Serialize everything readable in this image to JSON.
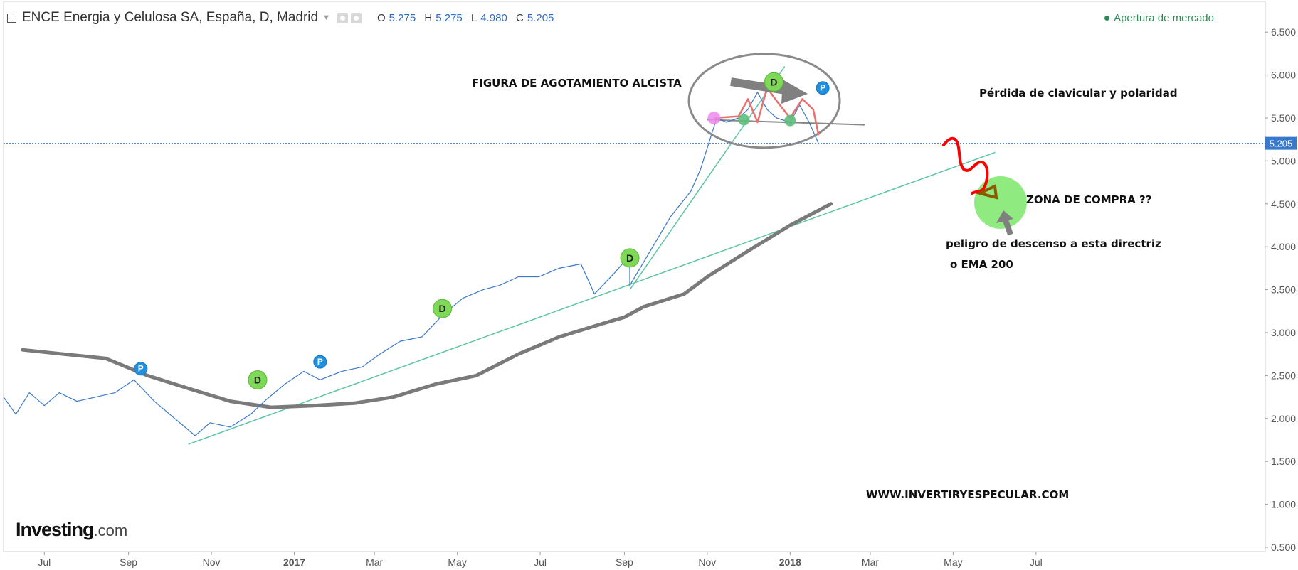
{
  "header": {
    "symbol_title": "ENCE Energia y Celulosa SA, España, D, Madrid",
    "ohlc": [
      {
        "key": "O",
        "value": "5.275"
      },
      {
        "key": "H",
        "value": "5.275"
      },
      {
        "key": "L",
        "value": "4.980"
      },
      {
        "key": "C",
        "value": "5.205"
      }
    ],
    "market_status": "Apertura de mercado"
  },
  "logo": {
    "brand": "Investing",
    "domain": ".com"
  },
  "annotations": {
    "pattern_label": "FIGURA DE AGOTAMIENTO ALCISTA",
    "loss_label": "Pérdida de clavicular y polaridad",
    "buy_zone_label": "ZONA DE COMPRA ??",
    "danger_label": "peligro de descenso a esta directriz",
    "ema_label": "o EMA 200",
    "website": "WWW.INVERTIRYESPECULAR.COM"
  },
  "colors": {
    "price_line": "#3a78c9",
    "ema_line": "#7a7a7a",
    "trendline": "#5cc4a6",
    "neckline": "#888888",
    "hs_pattern": "#e8706e",
    "projection": "#ff0000",
    "buy_zone": "#7be86a",
    "dividend_marker": "#7ed957",
    "p_marker": "#1e90e0",
    "last_price_badge": "#3a78c9"
  },
  "chart_data": {
    "type": "line",
    "x_tick_labels": [
      "Jul",
      "Sep",
      "Nov",
      "2017",
      "Mar",
      "May",
      "Jul",
      "Sep",
      "Nov",
      "2018",
      "Mar",
      "May",
      "Jul"
    ],
    "y_tick_labels": [
      "0.500",
      "1.000",
      "1.500",
      "2.000",
      "2.500",
      "3.000",
      "3.500",
      "4.000",
      "4.500",
      "5.000",
      "5.500",
      "6.000",
      "6.500"
    ],
    "ylim": [
      0.4,
      6.85
    ],
    "grid": false,
    "last_price": "5.205",
    "series": [
      {
        "name": "ENCE Energia y Celulosa SA",
        "type": "price",
        "points": [
          [
            "2016-06-01",
            2.25
          ],
          [
            "2016-06-10",
            2.05
          ],
          [
            "2016-06-20",
            2.3
          ],
          [
            "2016-07-01",
            2.15
          ],
          [
            "2016-07-12",
            2.3
          ],
          [
            "2016-07-25",
            2.2
          ],
          [
            "2016-08-08",
            2.25
          ],
          [
            "2016-08-22",
            2.3
          ],
          [
            "2016-09-05",
            2.45
          ],
          [
            "2016-09-20",
            2.2
          ],
          [
            "2016-10-05",
            2.0
          ],
          [
            "2016-10-20",
            1.8
          ],
          [
            "2016-10-31",
            1.95
          ],
          [
            "2016-11-15",
            1.9
          ],
          [
            "2016-11-30",
            2.05
          ],
          [
            "2016-12-10",
            2.2
          ],
          [
            "2016-12-25",
            2.4
          ],
          [
            "2017-01-08",
            2.55
          ],
          [
            "2017-01-20",
            2.45
          ],
          [
            "2017-02-05",
            2.55
          ],
          [
            "2017-02-20",
            2.6
          ],
          [
            "2017-03-05",
            2.75
          ],
          [
            "2017-03-20",
            2.9
          ],
          [
            "2017-04-05",
            2.95
          ],
          [
            "2017-04-20",
            3.2
          ],
          [
            "2017-05-05",
            3.4
          ],
          [
            "2017-05-20",
            3.5
          ],
          [
            "2017-06-01",
            3.55
          ],
          [
            "2017-06-15",
            3.65
          ],
          [
            "2017-06-30",
            3.65
          ],
          [
            "2017-07-15",
            3.75
          ],
          [
            "2017-07-31",
            3.8
          ],
          [
            "2017-08-10",
            3.45
          ],
          [
            "2017-08-25",
            3.7
          ],
          [
            "2017-09-05",
            3.9
          ],
          [
            "2017-09-05",
            3.55
          ],
          [
            "2017-09-20",
            3.95
          ],
          [
            "2017-10-05",
            4.35
          ],
          [
            "2017-10-20",
            4.65
          ],
          [
            "2017-10-27",
            4.9
          ],
          [
            "2017-11-03",
            5.25
          ],
          [
            "2017-11-08",
            5.5
          ],
          [
            "2017-11-15",
            5.45
          ],
          [
            "2017-11-24",
            5.5
          ],
          [
            "2017-12-01",
            5.6
          ],
          [
            "2017-12-08",
            5.8
          ],
          [
            "2017-12-15",
            5.6
          ],
          [
            "2017-12-22",
            5.5
          ],
          [
            "2018-01-01",
            5.45
          ],
          [
            "2018-01-08",
            5.65
          ],
          [
            "2018-01-15",
            5.45
          ],
          [
            "2018-01-22",
            5.2
          ]
        ]
      },
      {
        "name": "EMA 200",
        "type": "ema",
        "points": [
          [
            "2016-06-15",
            2.8
          ],
          [
            "2016-07-15",
            2.75
          ],
          [
            "2016-08-15",
            2.7
          ],
          [
            "2016-09-15",
            2.5
          ],
          [
            "2016-10-15",
            2.35
          ],
          [
            "2016-11-15",
            2.2
          ],
          [
            "2016-12-15",
            2.13
          ],
          [
            "2017-01-15",
            2.15
          ],
          [
            "2017-02-15",
            2.18
          ],
          [
            "2017-03-15",
            2.25
          ],
          [
            "2017-04-15",
            2.4
          ],
          [
            "2017-05-15",
            2.5
          ],
          [
            "2017-06-15",
            2.75
          ],
          [
            "2017-07-15",
            2.95
          ],
          [
            "2017-08-15",
            3.1
          ],
          [
            "2017-09-01",
            3.18
          ],
          [
            "2017-09-15",
            3.3
          ],
          [
            "2017-10-15",
            3.45
          ],
          [
            "2017-11-01",
            3.65
          ],
          [
            "2017-12-01",
            3.95
          ],
          [
            "2018-01-01",
            4.25
          ],
          [
            "2018-01-31",
            4.5
          ]
        ]
      }
    ],
    "trendlines": [
      {
        "from": [
          "2016-10-15",
          1.7
        ],
        "to": [
          "2018-06-01",
          5.1
        ]
      },
      {
        "from": [
          "2017-09-05",
          3.5
        ],
        "to": [
          "2017-12-28",
          6.1
        ]
      },
      {
        "from": [
          "2017-11-01",
          5.48
        ],
        "to": [
          "2018-02-25",
          5.42
        ]
      }
    ],
    "markers": [
      {
        "label": "P",
        "type": "p",
        "date": "2016-09-10",
        "value": 2.58
      },
      {
        "label": "D",
        "type": "d",
        "date": "2016-12-05",
        "value": 2.45
      },
      {
        "label": "P",
        "type": "p",
        "date": "2017-01-20",
        "value": 2.66
      },
      {
        "label": "D",
        "type": "d",
        "date": "2017-04-20",
        "value": 3.28
      },
      {
        "label": "D",
        "type": "d",
        "date": "2017-09-05",
        "value": 3.87
      },
      {
        "label": "D",
        "type": "d",
        "date": "2017-12-20",
        "value": 5.92
      },
      {
        "label": "P",
        "type": "p",
        "date": "2018-01-25",
        "value": 5.85
      }
    ]
  }
}
